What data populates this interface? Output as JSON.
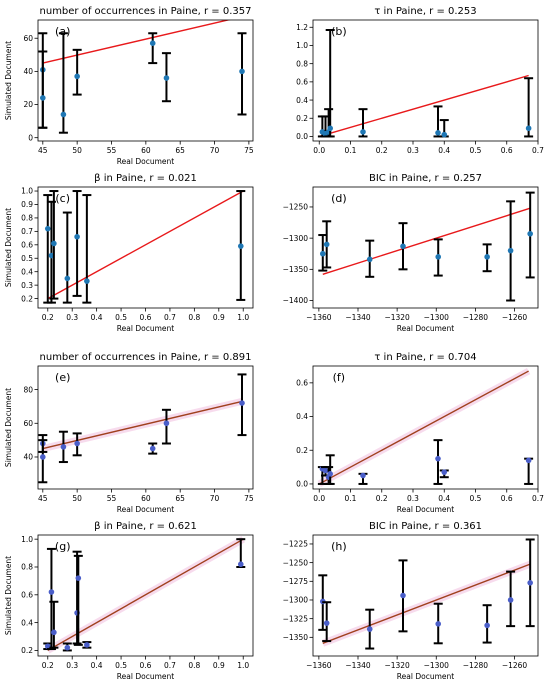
{
  "figure": {
    "width": 550,
    "height": 681
  },
  "chart_data": [
    {
      "id": "a",
      "type": "scatter",
      "panel_label": "(a)",
      "title": "number of occurrences in Paine,  r = 0.357",
      "xlabel": "Real Document",
      "ylabel": "Simulated Document",
      "xlim": [
        44.3,
        75.6
      ],
      "ylim": [
        -2,
        71
      ],
      "xticks": [
        45,
        50,
        55,
        60,
        65,
        70,
        75
      ],
      "yticks": [
        0,
        20,
        40,
        60
      ],
      "x_tick_labels": [
        "45",
        "50",
        "55",
        "60",
        "65",
        "70",
        "75"
      ],
      "y_tick_labels": [
        "0",
        "20",
        "40",
        "60"
      ],
      "points": [
        {
          "x": 45,
          "y": 41,
          "lo": 6,
          "hi": 63
        },
        {
          "x": 45,
          "y": 24,
          "lo": 6,
          "hi": 52
        },
        {
          "x": 48,
          "y": 14,
          "lo": 3,
          "hi": 63
        },
        {
          "x": 50,
          "y": 37,
          "lo": 26,
          "hi": 53
        },
        {
          "x": 61,
          "y": 57,
          "lo": 45,
          "hi": 63
        },
        {
          "x": 63,
          "y": 36,
          "lo": 22,
          "hi": 51
        },
        {
          "x": 74,
          "y": 40,
          "lo": 14,
          "hi": 63
        }
      ],
      "fit_line": {
        "x": [
          45,
          74
        ],
        "y": [
          45,
          73
        ]
      },
      "point_color": "#1f77b4",
      "line_color": "#e8191b"
    },
    {
      "id": "b",
      "type": "scatter",
      "panel_label": "(b)",
      "title": "τ   in Paine,  r = 0.253",
      "xlabel": "",
      "ylabel": "",
      "xlim": [
        -0.02,
        0.7
      ],
      "ylim": [
        -0.05,
        1.28
      ],
      "xticks": [
        0.0,
        0.1,
        0.2,
        0.3,
        0.4,
        0.5,
        0.6,
        0.7
      ],
      "yticks": [
        0.0,
        0.2,
        0.4,
        0.6,
        0.8,
        1.0,
        1.2
      ],
      "x_tick_labels": [
        "0.0",
        "0.1",
        "0.2",
        "0.3",
        "0.4",
        "0.5",
        "0.6",
        "0.7"
      ],
      "y_tick_labels": [
        "0.0",
        "0.2",
        "0.4",
        "0.6",
        "0.8",
        "1.0",
        "1.2"
      ],
      "points": [
        {
          "x": 0.01,
          "y": 0.05,
          "lo": 0.0,
          "hi": 0.22
        },
        {
          "x": 0.02,
          "y": 0.03,
          "lo": 0.0,
          "hi": 0.22
        },
        {
          "x": 0.03,
          "y": 0.05,
          "lo": 0.0,
          "hi": 0.3
        },
        {
          "x": 0.035,
          "y": 0.09,
          "lo": 0.0,
          "hi": 1.17
        },
        {
          "x": 0.14,
          "y": 0.05,
          "lo": 0.0,
          "hi": 0.3
        },
        {
          "x": 0.38,
          "y": 0.04,
          "lo": 0.0,
          "hi": 0.33
        },
        {
          "x": 0.4,
          "y": 0.02,
          "lo": 0.0,
          "hi": 0.18
        },
        {
          "x": 0.67,
          "y": 0.09,
          "lo": 0.0,
          "hi": 0.64
        }
      ],
      "fit_line": {
        "x": [
          0.0,
          0.67
        ],
        "y": [
          0.0,
          0.67
        ]
      },
      "point_color": "#1f77b4",
      "line_color": "#e8191b"
    },
    {
      "id": "c",
      "type": "scatter",
      "panel_label": "(c)",
      "title": "β   in Paine,  r = 0.021",
      "xlabel": "Real Document",
      "ylabel": "Simulated Document",
      "xlim": [
        0.16,
        1.04
      ],
      "ylim": [
        0.13,
        1.03
      ],
      "xticks": [
        0.2,
        0.3,
        0.4,
        0.5,
        0.6,
        0.7,
        0.8,
        0.9,
        1.0
      ],
      "yticks": [
        0.2,
        0.3,
        0.4,
        0.5,
        0.6,
        0.7,
        0.8,
        0.9,
        1.0
      ],
      "x_tick_labels": [
        "0.2",
        "0.3",
        "0.4",
        "0.5",
        "0.6",
        "0.7",
        "0.8",
        "0.9",
        "1.0"
      ],
      "y_tick_labels": [
        "0.2",
        "0.3",
        "0.4",
        "0.5",
        "0.6",
        "0.7",
        "0.8",
        "0.9",
        "1.0"
      ],
      "points": [
        {
          "x": 0.2,
          "y": 0.72,
          "lo": 0.17,
          "hi": 0.97
        },
        {
          "x": 0.215,
          "y": 0.52,
          "lo": 0.17,
          "hi": 0.92
        },
        {
          "x": 0.225,
          "y": 0.61,
          "lo": 0.2,
          "hi": 1.0
        },
        {
          "x": 0.28,
          "y": 0.35,
          "lo": 0.17,
          "hi": 0.84
        },
        {
          "x": 0.32,
          "y": 0.66,
          "lo": 0.22,
          "hi": 1.0
        },
        {
          "x": 0.36,
          "y": 0.33,
          "lo": 0.17,
          "hi": 0.97
        },
        {
          "x": 0.99,
          "y": 0.59,
          "lo": 0.19,
          "hi": 1.0
        }
      ],
      "fit_line": {
        "x": [
          0.2,
          1.0
        ],
        "y": [
          0.2,
          1.0
        ]
      },
      "point_color": "#1f77b4",
      "line_color": "#e8191b"
    },
    {
      "id": "d",
      "type": "scatter",
      "panel_label": "(d)",
      "title": "BIC in Paine,  r = 0.257",
      "xlabel": "Real Document",
      "ylabel": "",
      "xlim": [
        -1363,
        -1248
      ],
      "ylim": [
        -1412,
        -1218
      ],
      "xticks": [
        -1360,
        -1340,
        -1320,
        -1300,
        -1280,
        -1260
      ],
      "yticks": [
        -1400,
        -1350,
        -1300,
        -1250
      ],
      "x_tick_labels": [
        "−1360",
        "−1340",
        "−1320",
        "−1300",
        "−1280",
        "−1260"
      ],
      "y_tick_labels": [
        "−1400",
        "−1350",
        "−1300",
        "−1250"
      ],
      "points": [
        {
          "x": -1358,
          "y": -1325,
          "lo": -1352,
          "hi": -1295
        },
        {
          "x": -1356,
          "y": -1310,
          "lo": -1347,
          "hi": -1273
        },
        {
          "x": -1334,
          "y": -1334,
          "lo": -1362,
          "hi": -1304
        },
        {
          "x": -1317,
          "y": -1313,
          "lo": -1350,
          "hi": -1276
        },
        {
          "x": -1299,
          "y": -1330,
          "lo": -1360,
          "hi": -1302
        },
        {
          "x": -1274,
          "y": -1330,
          "lo": -1353,
          "hi": -1310
        },
        {
          "x": -1262,
          "y": -1320,
          "lo": -1400,
          "hi": -1241
        },
        {
          "x": -1252,
          "y": -1293,
          "lo": -1363,
          "hi": -1227
        }
      ],
      "fit_line": {
        "x": [
          -1358,
          -1252
        ],
        "y": [
          -1358,
          -1252
        ]
      },
      "point_color": "#1f77b4",
      "line_color": "#e8191b"
    },
    {
      "id": "e",
      "type": "scatter",
      "panel_label": "(e)",
      "title": "number of occurrences in Paine,  r = 0.891",
      "xlabel": "Real Document",
      "ylabel": "Simulated Document",
      "xlim": [
        44.3,
        75.6
      ],
      "ylim": [
        21,
        94
      ],
      "xticks": [
        45,
        50,
        55,
        60,
        65,
        70,
        75
      ],
      "yticks": [
        40,
        60,
        80
      ],
      "x_tick_labels": [
        "45",
        "50",
        "55",
        "60",
        "65",
        "70",
        "75"
      ],
      "y_tick_labels": [
        "40",
        "60",
        "80"
      ],
      "points": [
        {
          "x": 45,
          "y": 48,
          "lo": 43,
          "hi": 53
        },
        {
          "x": 45,
          "y": 40,
          "lo": 25,
          "hi": 50
        },
        {
          "x": 48,
          "y": 46,
          "lo": 37,
          "hi": 55
        },
        {
          "x": 50,
          "y": 48,
          "lo": 41,
          "hi": 54
        },
        {
          "x": 61,
          "y": 45,
          "lo": 42,
          "hi": 48
        },
        {
          "x": 63,
          "y": 60,
          "lo": 48,
          "hi": 68
        },
        {
          "x": 74,
          "y": 72,
          "lo": 53,
          "hi": 89
        }
      ],
      "fit_line": {
        "x": [
          45,
          74
        ],
        "y": [
          45,
          73
        ]
      },
      "point_color": "#4a5ec9",
      "line_color": "#a0401e"
    },
    {
      "id": "f",
      "type": "scatter",
      "panel_label": "(f)",
      "title": "τ   in Paine,  r = 0.704",
      "xlabel": "Real Document",
      "ylabel": "",
      "xlim": [
        -0.02,
        0.7
      ],
      "ylim": [
        -0.03,
        0.7
      ],
      "xticks": [
        0.0,
        0.1,
        0.2,
        0.3,
        0.4,
        0.5,
        0.6,
        0.7
      ],
      "yticks": [
        0.0,
        0.2,
        0.4,
        0.6
      ],
      "x_tick_labels": [
        "0.0",
        "0.1",
        "0.2",
        "0.3",
        "0.4",
        "0.5",
        "0.6",
        "0.7"
      ],
      "y_tick_labels": [
        "0.0",
        "0.2",
        "0.4",
        "0.6"
      ],
      "points": [
        {
          "x": 0.01,
          "y": 0.09,
          "lo": 0.0,
          "hi": 0.1
        },
        {
          "x": 0.02,
          "y": 0.08,
          "lo": 0.05,
          "hi": 0.1
        },
        {
          "x": 0.03,
          "y": 0.04,
          "lo": 0.0,
          "hi": 0.1
        },
        {
          "x": 0.035,
          "y": 0.06,
          "lo": 0.0,
          "hi": 0.17
        },
        {
          "x": 0.14,
          "y": 0.05,
          "lo": 0.0,
          "hi": 0.06
        },
        {
          "x": 0.38,
          "y": 0.15,
          "lo": 0.0,
          "hi": 0.26
        },
        {
          "x": 0.4,
          "y": 0.07,
          "lo": 0.04,
          "hi": 0.08
        },
        {
          "x": 0.67,
          "y": 0.14,
          "lo": 0.0,
          "hi": 0.15
        }
      ],
      "fit_line": {
        "x": [
          0.0,
          0.67
        ],
        "y": [
          0.0,
          0.67
        ]
      },
      "point_color": "#4a5ec9",
      "line_color": "#a0401e"
    },
    {
      "id": "g",
      "type": "scatter",
      "panel_label": "(g)",
      "title": "β   in Paine,  r = 0.621",
      "xlabel": "Real Document",
      "ylabel": "Simulated Document",
      "xlim": [
        0.16,
        1.04
      ],
      "ylim": [
        0.16,
        1.03
      ],
      "xticks": [
        0.2,
        0.3,
        0.4,
        0.5,
        0.6,
        0.7,
        0.8,
        0.9,
        1.0
      ],
      "yticks": [
        0.2,
        0.4,
        0.6,
        0.8,
        1.0
      ],
      "x_tick_labels": [
        "0.2",
        "0.3",
        "0.4",
        "0.5",
        "0.6",
        "0.7",
        "0.8",
        "0.9",
        "1.0"
      ],
      "y_tick_labels": [
        "0.2",
        "0.4",
        "0.6",
        "0.8",
        "1.0"
      ],
      "points": [
        {
          "x": 0.2,
          "y": 0.23,
          "lo": 0.21,
          "hi": 0.25
        },
        {
          "x": 0.215,
          "y": 0.62,
          "lo": 0.21,
          "hi": 0.93
        },
        {
          "x": 0.225,
          "y": 0.33,
          "lo": 0.22,
          "hi": 0.55
        },
        {
          "x": 0.28,
          "y": 0.22,
          "lo": 0.2,
          "hi": 0.25
        },
        {
          "x": 0.32,
          "y": 0.47,
          "lo": 0.25,
          "hi": 0.91
        },
        {
          "x": 0.325,
          "y": 0.72,
          "lo": 0.24,
          "hi": 0.88
        },
        {
          "x": 0.36,
          "y": 0.24,
          "lo": 0.22,
          "hi": 0.26
        },
        {
          "x": 0.99,
          "y": 0.82,
          "lo": 0.8,
          "hi": 1.0
        }
      ],
      "fit_line": {
        "x": [
          0.2,
          1.0
        ],
        "y": [
          0.2,
          1.0
        ]
      },
      "point_color": "#4a5ec9",
      "line_color": "#a0401e"
    },
    {
      "id": "h",
      "type": "scatter",
      "panel_label": "(h)",
      "title": "BIC in Paine,  r = 0.361",
      "xlabel": "Real Document",
      "ylabel": "",
      "xlim": [
        -1363,
        -1248
      ],
      "ylim": [
        -1375,
        -1213
      ],
      "xticks": [
        -1360,
        -1340,
        -1320,
        -1300,
        -1280,
        -1260
      ],
      "yticks": [
        -1350,
        -1325,
        -1300,
        -1275,
        -1250,
        -1225
      ],
      "x_tick_labels": [
        "−1360",
        "−1340",
        "−1320",
        "−1300",
        "−1280",
        "−1260"
      ],
      "y_tick_labels": [
        "−1350",
        "−1325",
        "−1300",
        "−1275",
        "−1250",
        "−1225"
      ],
      "points": [
        {
          "x": -1358,
          "y": -1302,
          "lo": -1340,
          "hi": -1267
        },
        {
          "x": -1356,
          "y": -1331,
          "lo": -1355,
          "hi": -1303
        },
        {
          "x": -1334,
          "y": -1339,
          "lo": -1365,
          "hi": -1313
        },
        {
          "x": -1317,
          "y": -1294,
          "lo": -1342,
          "hi": -1247
        },
        {
          "x": -1299,
          "y": -1332,
          "lo": -1358,
          "hi": -1305
        },
        {
          "x": -1274,
          "y": -1334,
          "lo": -1357,
          "hi": -1307
        },
        {
          "x": -1262,
          "y": -1300,
          "lo": -1335,
          "hi": -1262
        },
        {
          "x": -1252,
          "y": -1277,
          "lo": -1335,
          "hi": -1219
        }
      ],
      "fit_line": {
        "x": [
          -1358,
          -1252
        ],
        "y": [
          -1358,
          -1252
        ]
      },
      "point_color": "#4a5ec9",
      "line_color": "#a0401e"
    }
  ]
}
